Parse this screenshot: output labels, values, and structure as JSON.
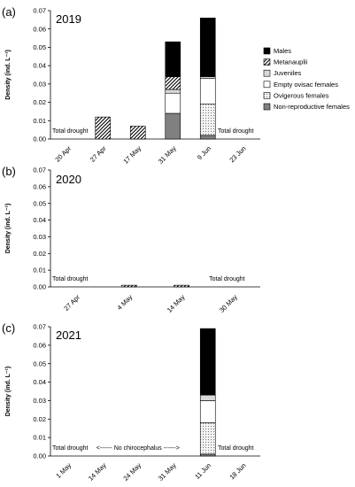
{
  "chart_data": [
    {
      "type": "bar",
      "stacked": true,
      "panel_label": "(a)",
      "year": "2019",
      "ylabel": "Density (ind. L⁻¹)",
      "ylim": [
        0,
        0.07
      ],
      "yticks": [
        "0.00",
        "0.01",
        "0.02",
        "0.03",
        "0.04",
        "0.05",
        "0.06",
        "0.07"
      ],
      "categories": [
        "20 Apr",
        "27 Apr",
        "17 May",
        "31 May",
        "9 Jun",
        "23 Jun"
      ],
      "series": [
        {
          "name": "Non-reproductive females",
          "values": [
            0,
            0,
            0,
            0.014,
            0.002,
            0
          ]
        },
        {
          "name": "Ovigerous females",
          "values": [
            0,
            0,
            0,
            0,
            0.017,
            0
          ]
        },
        {
          "name": "Empty ovisac females",
          "values": [
            0,
            0,
            0,
            0.011,
            0.014,
            0
          ]
        },
        {
          "name": "Juveniles",
          "values": [
            0,
            0,
            0,
            0.002,
            0.001,
            0
          ]
        },
        {
          "name": "Metanauplii",
          "values": [
            0,
            0.012,
            0.007,
            0.007,
            0,
            0
          ]
        },
        {
          "name": "Males",
          "values": [
            0,
            0,
            0,
            0.019,
            0.032,
            0
          ]
        }
      ],
      "annotations": [
        {
          "text": "Total drought",
          "category": "20 Apr"
        },
        {
          "text": "Total drought",
          "category": "23 Jun"
        }
      ],
      "legend": "right"
    },
    {
      "type": "bar",
      "stacked": true,
      "panel_label": "(b)",
      "year": "2020",
      "ylabel": "Density (ind. L⁻¹)",
      "ylim": [
        0,
        0.07
      ],
      "yticks": [
        "0.00",
        "0.01",
        "0.02",
        "0.03",
        "0.04",
        "0.05",
        "0.06",
        "0.07"
      ],
      "categories": [
        "27 Apr",
        "4 May",
        "14 May",
        "30 May"
      ],
      "series": [
        {
          "name": "Non-reproductive females",
          "values": [
            0,
            0,
            0,
            0
          ]
        },
        {
          "name": "Ovigerous females",
          "values": [
            0,
            0,
            0,
            0
          ]
        },
        {
          "name": "Empty ovisac females",
          "values": [
            0,
            0,
            0,
            0
          ]
        },
        {
          "name": "Juveniles",
          "values": [
            0,
            0,
            0,
            0
          ]
        },
        {
          "name": "Metanauplii",
          "values": [
            0,
            0.001,
            0.001,
            0
          ]
        },
        {
          "name": "Males",
          "values": [
            0,
            0,
            0,
            0
          ]
        }
      ],
      "annotations": [
        {
          "text": "Total drought",
          "category": "27 Apr"
        },
        {
          "text": "Total drought",
          "category": "30 May"
        }
      ]
    },
    {
      "type": "bar",
      "stacked": true,
      "panel_label": "(c)",
      "year": "2021",
      "ylabel": "Density (ind. L⁻¹)",
      "ylim": [
        0,
        0.07
      ],
      "yticks": [
        "0.00",
        "0.01",
        "0.02",
        "0.03",
        "0.04",
        "0.05",
        "0.06",
        "0.07"
      ],
      "categories": [
        "1 May",
        "14 May",
        "24 May",
        "31 May",
        "11 Jun",
        "18 Jun"
      ],
      "series": [
        {
          "name": "Non-reproductive females",
          "values": [
            0,
            0,
            0,
            0,
            0.001,
            0
          ]
        },
        {
          "name": "Ovigerous females",
          "values": [
            0,
            0,
            0,
            0,
            0.017,
            0
          ]
        },
        {
          "name": "Empty ovisac females",
          "values": [
            0,
            0,
            0,
            0,
            0.012,
            0
          ]
        },
        {
          "name": "Juveniles",
          "values": [
            0,
            0,
            0,
            0,
            0.003,
            0
          ]
        },
        {
          "name": "Metanauplii",
          "values": [
            0,
            0,
            0,
            0,
            0,
            0
          ]
        },
        {
          "name": "Males",
          "values": [
            0,
            0,
            0,
            0,
            0.036,
            0
          ]
        }
      ],
      "annotations": [
        {
          "text": "Total drought",
          "category": "1 May"
        },
        {
          "text": "<------ No chirocephalus ------>",
          "category": "14 May"
        },
        {
          "text": "Total drought",
          "category": "18 Jun"
        }
      ]
    }
  ]
}
